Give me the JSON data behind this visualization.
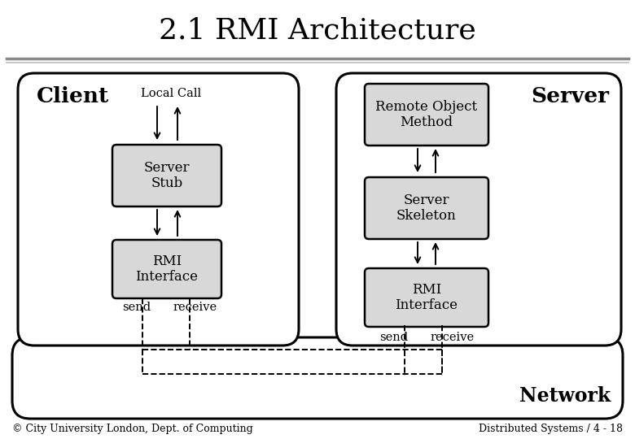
{
  "title": "2.1 RMI Architecture",
  "title_fontsize": 26,
  "title_font": "serif",
  "bg_color": "#ffffff",
  "box_facecolor": "#d8d8d8",
  "box_edgecolor": "#000000",
  "footer_left": "© City University London, Dept. of Computing",
  "footer_right": "Distributed Systems / 4 - 18",
  "footer_fontsize": 9,
  "client_label": "Client",
  "server_label": "Server",
  "local_call_label": "Local Call",
  "remote_object_label": "Remote Object\nMethod",
  "server_stub_label": "Server\nStub",
  "server_skeleton_label": "Server\nSkeleton",
  "rmi_interface_label": "RMI\nInterface",
  "send_label": "send",
  "receive_label": "receive",
  "network_label": "Network"
}
